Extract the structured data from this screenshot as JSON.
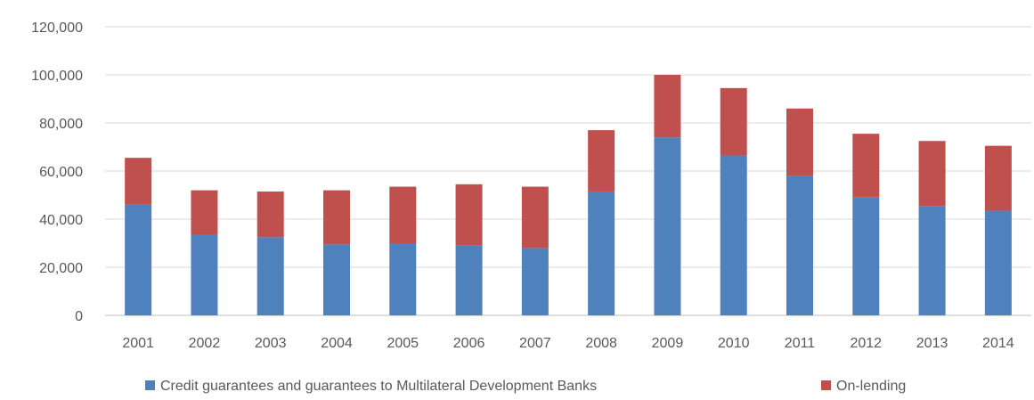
{
  "chart_data": {
    "type": "bar",
    "stacked": true,
    "title": "",
    "xlabel": "",
    "ylabel": "",
    "ylim": [
      0,
      120000
    ],
    "y_ticks": [
      "0",
      "20,000",
      "40,000",
      "60,000",
      "80,000",
      "100,000",
      "120,000"
    ],
    "y_tick_values": [
      0,
      20000,
      40000,
      60000,
      80000,
      100000,
      120000
    ],
    "grid": true,
    "legend_position": "bottom",
    "categories": [
      "2001",
      "2002",
      "2003",
      "2004",
      "2005",
      "2006",
      "2007",
      "2008",
      "2009",
      "2010",
      "2011",
      "2012",
      "2013",
      "2014"
    ],
    "series": [
      {
        "name": "Credit guarantees and guarantees to Multilateral Development Banks",
        "color": "#4f81bd",
        "values": [
          46000,
          33500,
          32500,
          29500,
          30000,
          29000,
          28000,
          51500,
          74000,
          66500,
          58000,
          49000,
          45500,
          43500
        ]
      },
      {
        "name": "On-lending",
        "color": "#c0504d",
        "values": [
          19500,
          18500,
          19000,
          22500,
          23500,
          25500,
          25500,
          25500,
          26000,
          28000,
          28000,
          26500,
          27000,
          27000
        ]
      }
    ]
  }
}
